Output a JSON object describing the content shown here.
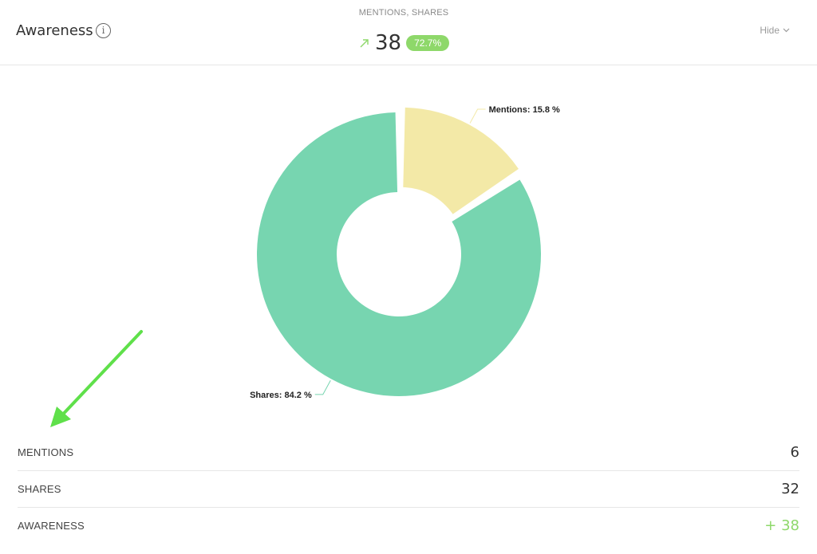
{
  "header": {
    "title": "Awareness",
    "info_icon": "info-icon",
    "metric_label": "MENTIONS, SHARES",
    "metric_value": "38",
    "trend_icon": "arrow-up-right-icon",
    "change_badge": "72.7%",
    "hide_label": "Hide",
    "colors": {
      "positive": "#8ed86a"
    }
  },
  "chart_data": {
    "type": "pie",
    "donut": true,
    "slices": [
      {
        "label": "Mentions: 15.8 %",
        "name": "Mentions",
        "percent": 15.8,
        "color": "#f3e9a7"
      },
      {
        "label": "Shares: 84.2 %",
        "name": "Shares",
        "percent": 84.2,
        "color": "#77d5b0"
      }
    ]
  },
  "table": {
    "rows": [
      {
        "label": "MENTIONS",
        "value": "6",
        "positive": false
      },
      {
        "label": "SHARES",
        "value": "32",
        "positive": false
      },
      {
        "label": "AWARENESS",
        "value": "+ 38",
        "positive": true
      }
    ]
  }
}
